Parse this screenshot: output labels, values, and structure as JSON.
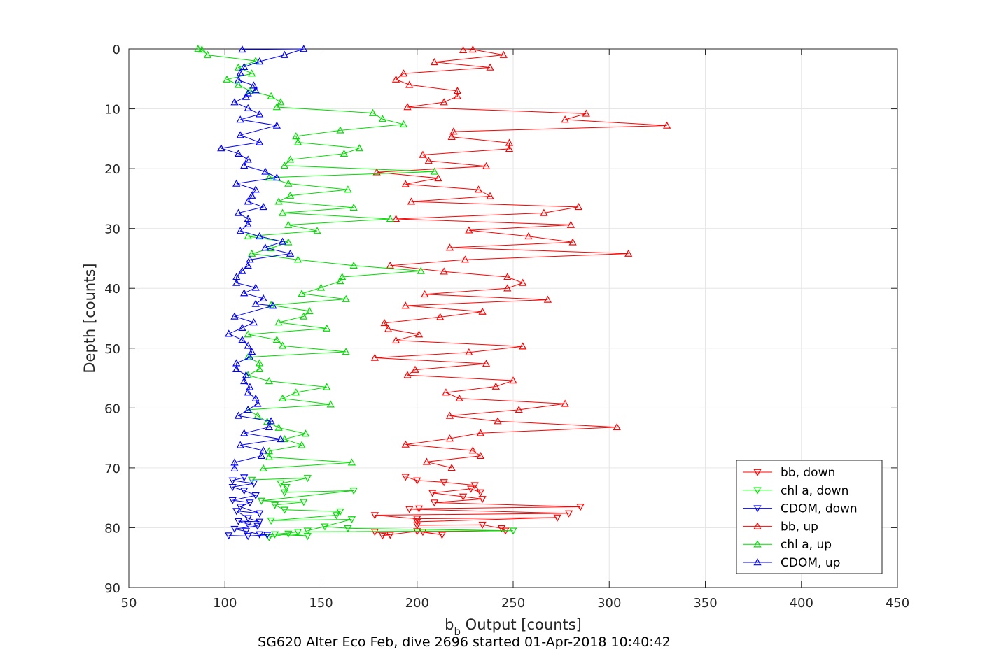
{
  "figure": {
    "xlabel_main": "b",
    "xlabel_sub": "b",
    "xlabel_rest": " Output [counts]",
    "ylabel": "Depth [counts]",
    "caption": "SG620 Alter Eco Feb, dive 2696 started 01-Apr-2018 10:40:42"
  },
  "chart_data": {
    "type": "line",
    "xlim": [
      50,
      450
    ],
    "ylim": [
      0,
      90
    ],
    "y_reversed": true,
    "grid": true,
    "legend_position": "bottom-right",
    "xticks": [
      50,
      100,
      150,
      200,
      250,
      300,
      350,
      400,
      450
    ],
    "yticks": [
      0,
      10,
      20,
      30,
      40,
      50,
      60,
      70,
      80,
      90
    ],
    "xtick_labels": [
      "50",
      "100",
      "150",
      "200",
      "250",
      "300",
      "350",
      "400",
      "450"
    ],
    "ytick_labels": [
      "0",
      "10",
      "20",
      "30",
      "40",
      "50",
      "60",
      "70",
      "80",
      "90"
    ],
    "series": [
      {
        "name": "bb, down",
        "color": "#ff0000",
        "marker": "triangle-down",
        "points": [
          [
            178,
            80.7
          ],
          [
            186,
            81.2
          ],
          [
            182,
            81.3
          ],
          [
            200,
            80.6
          ],
          [
            213,
            81.2
          ],
          [
            203,
            80.7
          ],
          [
            246,
            80.5
          ],
          [
            244,
            80.1
          ],
          [
            234,
            79.5
          ],
          [
            200,
            79.6
          ],
          [
            200,
            79.0
          ],
          [
            273,
            78.3
          ],
          [
            200,
            78.5
          ],
          [
            178,
            77.9
          ],
          [
            279,
            77.6
          ],
          [
            196,
            76.9
          ],
          [
            201,
            76.8
          ],
          [
            285,
            76.5
          ],
          [
            209,
            75.8
          ],
          [
            234,
            75.2
          ],
          [
            224,
            74.8
          ],
          [
            208,
            74.2
          ],
          [
            228,
            73.5
          ],
          [
            233,
            74.1
          ],
          [
            230,
            72.9
          ],
          [
            214,
            72.4
          ],
          [
            200,
            72.1
          ],
          [
            194,
            71.5
          ]
        ]
      },
      {
        "name": "chl a, down",
        "color": "#00dd00",
        "marker": "triangle-down",
        "points": [
          [
            123,
            81.6
          ],
          [
            133,
            81.0
          ],
          [
            143,
            81.4
          ],
          [
            126,
            81.1
          ],
          [
            138,
            80.7
          ],
          [
            250,
            80.5
          ],
          [
            164,
            80.1
          ],
          [
            152,
            79.8
          ],
          [
            143,
            80.5
          ],
          [
            166,
            78.6
          ],
          [
            124,
            78.8
          ],
          [
            158,
            77.9
          ],
          [
            160,
            77.3
          ],
          [
            131,
            77.0
          ],
          [
            126,
            76.2
          ],
          [
            141,
            75.7
          ],
          [
            119,
            75.5
          ],
          [
            167,
            73.8
          ],
          [
            131,
            74.1
          ],
          [
            132,
            73.2
          ],
          [
            129,
            72.6
          ],
          [
            143,
            71.7
          ],
          [
            114,
            72.0
          ]
        ]
      },
      {
        "name": "CDOM, down",
        "color": "#0000ff",
        "marker": "triangle-down",
        "points": [
          [
            102,
            81.3
          ],
          [
            112,
            81.4
          ],
          [
            122,
            81.2
          ],
          [
            118,
            81.1
          ],
          [
            111,
            80.6
          ],
          [
            105,
            80.2
          ],
          [
            117,
            79.7
          ],
          [
            112,
            79.4
          ],
          [
            107,
            78.9
          ],
          [
            118,
            79.0
          ],
          [
            112,
            78.4
          ],
          [
            106,
            77.2
          ],
          [
            118,
            77.6
          ],
          [
            108,
            76.5
          ],
          [
            113,
            75.8
          ],
          [
            104,
            75.4
          ],
          [
            116,
            74.6
          ],
          [
            110,
            73.8
          ],
          [
            104,
            73.2
          ],
          [
            115,
            72.6
          ],
          [
            104,
            72.1
          ],
          [
            110,
            71.6
          ]
        ]
      },
      {
        "name": "bb, up",
        "color": "#ff0000",
        "marker": "triangle-up",
        "points": [
          [
            224,
            0.2
          ],
          [
            229,
            0.1
          ],
          [
            245,
            1.0
          ],
          [
            209,
            2.2
          ],
          [
            238,
            3.1
          ],
          [
            193,
            4.1
          ],
          [
            189,
            5.1
          ],
          [
            196,
            6.0
          ],
          [
            221,
            7.0
          ],
          [
            221,
            7.9
          ],
          [
            214,
            8.9
          ],
          [
            195,
            9.7
          ],
          [
            288,
            10.8
          ],
          [
            277,
            11.8
          ],
          [
            330,
            12.8
          ],
          [
            219,
            13.8
          ],
          [
            218,
            14.7
          ],
          [
            248,
            15.7
          ],
          [
            248,
            16.7
          ],
          [
            203,
            17.7
          ],
          [
            206,
            18.7
          ],
          [
            236,
            19.6
          ],
          [
            179,
            20.6
          ],
          [
            211,
            21.6
          ],
          [
            194,
            22.6
          ],
          [
            232,
            23.5
          ],
          [
            238,
            24.6
          ],
          [
            197,
            25.5
          ],
          [
            284,
            26.4
          ],
          [
            266,
            27.4
          ],
          [
            189,
            28.4
          ],
          [
            280,
            29.4
          ],
          [
            227,
            30.3
          ],
          [
            258,
            31.3
          ],
          [
            281,
            32.3
          ],
          [
            217,
            33.2
          ],
          [
            310,
            34.2
          ],
          [
            225,
            35.2
          ],
          [
            186,
            36.2
          ],
          [
            214,
            37.2
          ],
          [
            247,
            38.1
          ],
          [
            255,
            39.1
          ],
          [
            247,
            40.0
          ],
          [
            204,
            41.0
          ],
          [
            268,
            41.9
          ],
          [
            194,
            42.9
          ],
          [
            234,
            43.9
          ],
          [
            212,
            44.8
          ],
          [
            183,
            45.8
          ],
          [
            185,
            46.8
          ],
          [
            201,
            47.7
          ],
          [
            189,
            48.7
          ],
          [
            255,
            49.7
          ],
          [
            227,
            50.7
          ],
          [
            178,
            51.6
          ],
          [
            236,
            52.6
          ],
          [
            199,
            53.6
          ],
          [
            195,
            54.5
          ],
          [
            250,
            55.4
          ],
          [
            241,
            56.4
          ],
          [
            215,
            57.4
          ],
          [
            222,
            58.4
          ],
          [
            277,
            59.3
          ],
          [
            253,
            60.3
          ],
          [
            217,
            61.3
          ],
          [
            242,
            62.2
          ],
          [
            304,
            63.2
          ],
          [
            233,
            64.2
          ],
          [
            217,
            65.1
          ],
          [
            194,
            66.1
          ],
          [
            229,
            67.1
          ],
          [
            233,
            68.0
          ],
          [
            205,
            69.0
          ],
          [
            218,
            70.0
          ]
        ]
      },
      {
        "name": "chl a, up",
        "color": "#00dd00",
        "marker": "triangle-up",
        "points": [
          [
            86,
            0.0
          ],
          [
            88,
            0.1
          ],
          [
            91,
            1.0
          ],
          [
            116,
            2.0
          ],
          [
            107,
            3.1
          ],
          [
            114,
            4.1
          ],
          [
            101,
            5.1
          ],
          [
            107,
            6.0
          ],
          [
            113,
            7.0
          ],
          [
            124,
            7.9
          ],
          [
            129,
            8.9
          ],
          [
            127,
            9.7
          ],
          [
            177,
            10.7
          ],
          [
            182,
            11.7
          ],
          [
            193,
            12.6
          ],
          [
            160,
            13.6
          ],
          [
            137,
            14.6
          ],
          [
            138,
            15.6
          ],
          [
            170,
            16.6
          ],
          [
            162,
            17.5
          ],
          [
            134,
            18.5
          ],
          [
            131,
            19.5
          ],
          [
            209,
            20.5
          ],
          [
            123,
            21.5
          ],
          [
            133,
            22.5
          ],
          [
            164,
            23.5
          ],
          [
            134,
            24.5
          ],
          [
            128,
            25.5
          ],
          [
            167,
            26.5
          ],
          [
            130,
            27.4
          ],
          [
            186,
            28.4
          ],
          [
            133,
            29.4
          ],
          [
            148,
            30.4
          ],
          [
            112,
            31.3
          ],
          [
            133,
            32.3
          ],
          [
            124,
            33.3
          ],
          [
            114,
            34.2
          ],
          [
            138,
            35.2
          ],
          [
            167,
            36.2
          ],
          [
            202,
            37.1
          ],
          [
            161,
            38.1
          ],
          [
            160,
            38.8
          ],
          [
            150,
            39.9
          ],
          [
            140,
            40.9
          ],
          [
            163,
            41.8
          ],
          [
            124,
            42.8
          ],
          [
            144,
            43.8
          ],
          [
            141,
            44.7
          ],
          [
            128,
            45.7
          ],
          [
            153,
            46.7
          ],
          [
            112,
            47.7
          ],
          [
            127,
            48.6
          ],
          [
            130,
            49.6
          ],
          [
            163,
            50.6
          ],
          [
            112,
            51.5
          ],
          [
            118,
            52.5
          ],
          [
            118,
            53.5
          ],
          [
            112,
            54.5
          ],
          [
            123,
            55.5
          ],
          [
            153,
            56.5
          ],
          [
            137,
            57.4
          ],
          [
            130,
            58.4
          ],
          [
            155,
            59.4
          ],
          [
            112,
            60.3
          ],
          [
            117,
            61.3
          ],
          [
            122,
            62.3
          ],
          [
            128,
            63.3
          ],
          [
            142,
            64.3
          ],
          [
            131,
            65.2
          ],
          [
            140,
            66.2
          ],
          [
            123,
            67.2
          ],
          [
            123,
            68.2
          ],
          [
            166,
            69.1
          ],
          [
            120,
            70.1
          ]
        ]
      },
      {
        "name": "CDOM, up",
        "color": "#0000ff",
        "marker": "triangle-up",
        "points": [
          [
            109,
            0.1
          ],
          [
            141,
            0.0
          ],
          [
            131,
            1.0
          ],
          [
            118,
            2.1
          ],
          [
            110,
            3.0
          ],
          [
            108,
            4.0
          ],
          [
            107,
            5.2
          ],
          [
            115,
            6.1
          ],
          [
            116,
            6.9
          ],
          [
            112,
            7.4
          ],
          [
            111,
            8.0
          ],
          [
            105,
            8.9
          ],
          [
            112,
            9.9
          ],
          [
            118,
            10.9
          ],
          [
            108,
            11.8
          ],
          [
            127,
            12.8
          ],
          [
            108,
            14.4
          ],
          [
            118,
            15.6
          ],
          [
            98,
            16.6
          ],
          [
            107,
            17.5
          ],
          [
            112,
            18.5
          ],
          [
            110,
            19.5
          ],
          [
            121,
            20.5
          ],
          [
            127,
            21.5
          ],
          [
            106,
            22.5
          ],
          [
            116,
            23.5
          ],
          [
            114,
            24.5
          ],
          [
            112,
            25.5
          ],
          [
            120,
            26.4
          ],
          [
            107,
            27.4
          ],
          [
            112,
            28.4
          ],
          [
            112,
            29.3
          ],
          [
            108,
            30.4
          ],
          [
            118,
            31.3
          ],
          [
            130,
            32.2
          ],
          [
            121,
            33.2
          ],
          [
            134,
            34.2
          ],
          [
            113,
            35.2
          ],
          [
            112,
            36.2
          ],
          [
            109,
            37.1
          ],
          [
            106,
            38.1
          ],
          [
            106,
            39.1
          ],
          [
            116,
            39.9
          ],
          [
            110,
            40.8
          ],
          [
            120,
            41.7
          ],
          [
            116,
            42.6
          ],
          [
            125,
            42.9
          ],
          [
            105,
            44.7
          ],
          [
            115,
            45.7
          ],
          [
            109,
            46.6
          ],
          [
            102,
            47.6
          ],
          [
            109,
            48.6
          ],
          [
            112,
            49.6
          ],
          [
            114,
            50.6
          ],
          [
            113,
            51.5
          ],
          [
            106,
            52.5
          ],
          [
            106,
            53.5
          ],
          [
            111,
            54.5
          ],
          [
            110,
            55.5
          ],
          [
            113,
            56.5
          ],
          [
            112,
            57.4
          ],
          [
            116,
            58.4
          ],
          [
            117,
            59.3
          ],
          [
            112,
            60.3
          ],
          [
            107,
            61.3
          ],
          [
            124,
            62.2
          ],
          [
            123,
            63.2
          ],
          [
            110,
            64.2
          ],
          [
            129,
            65.2
          ],
          [
            108,
            66.2
          ],
          [
            120,
            67.1
          ],
          [
            119,
            68.0
          ],
          [
            105,
            69.1
          ],
          [
            105,
            70.1
          ]
        ]
      }
    ]
  }
}
